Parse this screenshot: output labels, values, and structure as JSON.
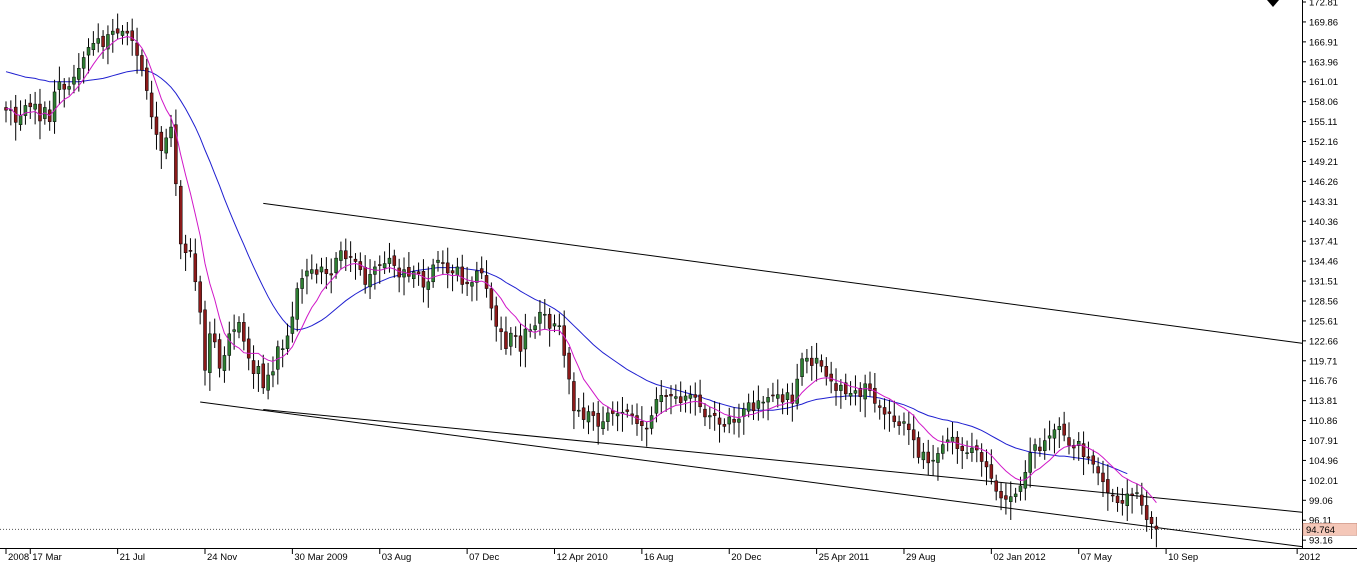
{
  "chart_data": {
    "type": "candlestick",
    "title": "",
    "xlabel": "",
    "ylabel": "",
    "grid": false,
    "legend": "none",
    "ylim": [
      92.0,
      172.81
    ],
    "y_ticks": [
      {
        "value": 172.81,
        "label": "172.81"
      },
      {
        "value": 169.86,
        "label": "169.86"
      },
      {
        "value": 166.91,
        "label": "166.91"
      },
      {
        "value": 163.96,
        "label": "163.96"
      },
      {
        "value": 161.01,
        "label": "161.01"
      },
      {
        "value": 158.06,
        "label": "158.06"
      },
      {
        "value": 155.11,
        "label": "155.11"
      },
      {
        "value": 152.16,
        "label": "152.16"
      },
      {
        "value": 149.21,
        "label": "149.21"
      },
      {
        "value": 146.26,
        "label": "146.26"
      },
      {
        "value": 143.31,
        "label": "143.31"
      },
      {
        "value": 140.36,
        "label": "140.36"
      },
      {
        "value": 137.41,
        "label": "137.41"
      },
      {
        "value": 134.46,
        "label": "134.46"
      },
      {
        "value": 131.51,
        "label": "131.51"
      },
      {
        "value": 128.56,
        "label": "128.56"
      },
      {
        "value": 125.61,
        "label": "125.61"
      },
      {
        "value": 122.66,
        "label": "122.66"
      },
      {
        "value": 119.71,
        "label": "119.71"
      },
      {
        "value": 116.76,
        "label": "116.76"
      },
      {
        "value": 113.81,
        "label": "113.81"
      },
      {
        "value": 110.86,
        "label": "110.86"
      },
      {
        "value": 107.91,
        "label": "107.91"
      },
      {
        "value": 104.96,
        "label": "104.96"
      },
      {
        "value": 102.01,
        "label": "102.01"
      },
      {
        "value": 99.06,
        "label": "99.06"
      },
      {
        "value": 96.11,
        "label": "96.11"
      },
      {
        "value": 93.16,
        "label": "93.16"
      }
    ],
    "x_ticks": [
      {
        "label": "2008",
        "x": 0
      },
      {
        "label": "17 Mar",
        "x": 5
      },
      {
        "label": "21 Jul",
        "x": 23
      },
      {
        "label": "24 Nov",
        "x": 41
      },
      {
        "label": "30 Mar 2009",
        "x": 59
      },
      {
        "label": "03 Aug",
        "x": 77
      },
      {
        "label": "07 Dec",
        "x": 95
      },
      {
        "label": "12 Apr 2010",
        "x": 113
      },
      {
        "label": "16 Aug",
        "x": 131
      },
      {
        "label": "20 Dec",
        "x": 149
      },
      {
        "label": "25 Apr 2011",
        "x": 167
      },
      {
        "label": "29 Aug",
        "x": 185
      },
      {
        "label": "02 Jan 2012",
        "x": 203
      },
      {
        "label": "07 May",
        "x": 221
      },
      {
        "label": "10 Sep",
        "x": 239
      },
      {
        "label": "2012",
        "x": 266
      }
    ],
    "x_range": [
      0,
      267
    ],
    "last_price": {
      "value": 94.764,
      "label": "94.764",
      "color": "#f4c7b8"
    },
    "colors": {
      "up": "#2e7d32",
      "down": "#8b1a1a",
      "wick": "#000000",
      "ma_fast": "#d017c8",
      "ma_slow": "#1f1fd0",
      "channel": "#000000",
      "background": "#ffffff"
    },
    "closes": [
      156.8,
      156.9,
      155.0,
      156.0,
      157.5,
      157.3,
      157.7,
      155.2,
      157.2,
      155.1,
      159.5,
      161.0,
      159.9,
      160.3,
      161.7,
      163.0,
      164.6,
      166.1,
      166.7,
      167.4,
      166.2,
      168.0,
      168.5,
      168.2,
      168.5,
      168.2,
      167.1,
      164.9,
      162.7,
      159.7,
      155.8,
      153.2,
      150.8,
      152.7,
      154.3,
      145.9,
      137.0,
      135.7,
      135.9,
      131.4,
      126.9,
      118.3,
      123.7,
      122.5,
      118.6,
      120.5,
      123.7,
      124.3,
      125.4,
      122.6,
      120.1,
      117.8,
      118.9,
      115.7,
      117.6,
      118.1,
      121.8,
      121.5,
      123.4,
      126.2,
      130.4,
      131.9,
      133.0,
      133.2,
      132.5,
      133.6,
      132.6,
      132.4,
      134.9,
      136.0,
      134.8,
      135.1,
      134.4,
      133.2,
      131.0,
      132.5,
      133.6,
      133.8,
      134.1,
      134.9,
      133.8,
      132.1,
      133.2,
      132.2,
      132.9,
      132.6,
      130.6,
      131.4,
      133.9,
      134.6,
      134.2,
      132.7,
      132.7,
      133.6,
      131.0,
      131.1,
      131.3,
      133.0,
      132.7,
      130.4,
      127.5,
      124.8,
      124.0,
      121.5,
      123.8,
      123.4,
      121.1,
      124.4,
      124.3,
      124.9,
      126.9,
      126.6,
      124.5,
      125.2,
      124.9,
      120.5,
      117.0,
      112.3,
      112.4,
      111.0,
      112.2,
      111.6,
      110.0,
      110.7,
      112.0,
      111.9,
      111.9,
      112.1,
      112.2,
      111.6,
      110.4,
      110.1,
      109.7,
      111.6,
      114.0,
      114.6,
      114.4,
      114.5,
      114.4,
      113.5,
      114.5,
      114.7,
      114.3,
      112.9,
      111.4,
      111.6,
      111.6,
      110.3,
      110.0,
      111.4,
      110.6,
      111.1,
      112.6,
      113.5,
      112.3,
      113.8,
      113.6,
      114.3,
      114.5,
      114.7,
      113.6,
      115.0,
      113.4,
      117.0,
      120.0,
      120.1,
      119.0,
      120.1,
      118.9,
      117.4,
      116.7,
      115.3,
      116.1,
      114.8,
      114.9,
      115.3,
      114.4,
      116.3,
      115.3,
      113.4,
      112.8,
      111.8,
      111.9,
      110.7,
      110.1,
      110.7,
      109.5,
      108.0,
      105.4,
      106.2,
      104.6,
      105.0,
      106.0,
      107.3,
      108.0,
      108.4,
      106.7,
      106.4,
      106.1,
      106.8,
      106.5,
      104.8,
      104.0,
      102.3,
      100.4,
      99.4,
      99.2,
      99.6,
      100.0,
      101.2,
      103.2,
      106.1,
      107.3,
      106.4,
      107.9,
      108.6,
      109.5,
      110.0,
      108.7,
      107.2,
      106.8,
      107.8,
      105.5,
      105.3,
      104.4,
      103.1,
      101.8,
      100.2,
      99.7,
      98.7,
      98.6,
      100.0,
      99.8,
      100.2,
      98.3,
      96.2,
      95.6,
      94.8
    ],
    "ma_fast": [
      157.0,
      157.0,
      156.2,
      156.0,
      156.4,
      156.5,
      156.6,
      156.1,
      156.4,
      156.0,
      156.8,
      157.7,
      158.4,
      158.8,
      159.6,
      160.4,
      161.4,
      162.5,
      163.6,
      164.6,
      165.5,
      166.1,
      166.8,
      167.3,
      167.5,
      167.7,
      167.5,
      166.9,
      166.0,
      164.6,
      162.7,
      160.6,
      158.5,
      156.9,
      155.7,
      153.5,
      150.2,
      147.2,
      144.5,
      141.4,
      138.2,
      134.1,
      131.1,
      128.8,
      126.0,
      123.8,
      122.7,
      122.0,
      121.6,
      120.9,
      120.8,
      120.8,
      120.8,
      120.2,
      119.8,
      119.6,
      120.0,
      120.3,
      120.9,
      121.8,
      123.3,
      124.7,
      126.2,
      127.6,
      128.6,
      129.9,
      130.8,
      131.6,
      132.4,
      133.3,
      133.7,
      134.0,
      134.1,
      133.9,
      133.5,
      133.3,
      133.1,
      133.1,
      133.3,
      133.5,
      133.3,
      132.9,
      132.8,
      132.6,
      132.6,
      132.5,
      132.1,
      131.8,
      132.1,
      132.3,
      132.5,
      132.5,
      132.3,
      132.4,
      132.0,
      131.7,
      131.5,
      131.4,
      131.5,
      131.2,
      130.6,
      129.8,
      128.9,
      127.7,
      126.9,
      126.2,
      125.2,
      124.7,
      124.1,
      123.9,
      124.2,
      124.4,
      124.2,
      124.2,
      124.2,
      123.3,
      122.1,
      120.3,
      118.7,
      117.0,
      116.0,
      115.0,
      114.0,
      113.3,
      112.9,
      112.4,
      112.1,
      111.9,
      111.7,
      111.5,
      111.2,
      110.9,
      110.7,
      110.8,
      111.4,
      112.0,
      112.4,
      112.8,
      113.1,
      113.2,
      113.4,
      113.6,
      113.7,
      113.6,
      113.3,
      112.9,
      112.6,
      112.2,
      111.8,
      111.6,
      111.4,
      111.3,
      111.5,
      111.7,
      111.8,
      112.1,
      112.3,
      112.5,
      112.8,
      113.1,
      113.2,
      113.5,
      113.5,
      114.1,
      115.0,
      115.7,
      116.3,
      116.9,
      117.1,
      117.2,
      117.1,
      116.8,
      116.6,
      116.3,
      115.9,
      115.8,
      115.5,
      115.6,
      115.5,
      115.2,
      114.8,
      114.4,
      114.1,
      113.6,
      113.1,
      112.7,
      112.2,
      111.6,
      110.6,
      109.9,
      109.1,
      108.4,
      107.9,
      107.7,
      107.6,
      107.7,
      107.5,
      107.3,
      107.1,
      107.0,
      106.9,
      106.6,
      106.3,
      105.7,
      104.9,
      104.1,
      103.4,
      102.8,
      102.3,
      102.0,
      102.1,
      102.7,
      103.4,
      103.8,
      104.4,
      105.0,
      105.7,
      106.4,
      106.9,
      107.1,
      107.1,
      107.3,
      107.1,
      106.8,
      106.4,
      106.0,
      105.4,
      104.7,
      104.0,
      103.3,
      102.6,
      102.2,
      101.8,
      101.5,
      101.1,
      100.4,
      99.6,
      98.7
    ],
    "ma_slow": [
      162.5,
      162.3,
      162.1,
      161.9,
      161.7,
      161.6,
      161.5,
      161.3,
      161.2,
      161.0,
      161.0,
      161.0,
      161.0,
      161.0,
      161.0,
      161.0,
      161.1,
      161.2,
      161.3,
      161.4,
      161.5,
      161.7,
      161.9,
      162.1,
      162.3,
      162.5,
      162.6,
      162.7,
      162.7,
      162.6,
      162.4,
      162.0,
      161.5,
      160.9,
      160.2,
      159.3,
      158.2,
      157.0,
      155.7,
      154.3,
      152.7,
      150.9,
      149.2,
      147.4,
      145.6,
      143.7,
      141.9,
      140.2,
      138.5,
      136.9,
      135.2,
      133.6,
      132.1,
      130.6,
      129.2,
      127.9,
      126.8,
      125.8,
      125.0,
      124.5,
      124.3,
      124.4,
      124.6,
      124.9,
      125.3,
      125.7,
      126.2,
      126.8,
      127.4,
      128.0,
      128.6,
      129.1,
      129.6,
      130.0,
      130.4,
      130.8,
      131.1,
      131.4,
      131.7,
      132.0,
      132.2,
      132.4,
      132.6,
      132.8,
      133.0,
      133.1,
      133.2,
      133.3,
      133.4,
      133.5,
      133.5,
      133.5,
      133.5,
      133.5,
      133.4,
      133.3,
      133.2,
      133.1,
      133.0,
      132.8,
      132.5,
      132.2,
      131.8,
      131.3,
      130.9,
      130.5,
      130.0,
      129.6,
      129.2,
      128.8,
      128.5,
      128.2,
      127.8,
      127.4,
      126.9,
      126.3,
      125.6,
      124.9,
      124.2,
      123.5,
      122.8,
      122.1,
      121.5,
      120.9,
      120.4,
      119.9,
      119.4,
      118.9,
      118.4,
      118.0,
      117.6,
      117.2,
      116.8,
      116.5,
      116.2,
      116.0,
      115.8,
      115.6,
      115.4,
      115.2,
      115.0,
      114.8,
      114.6,
      114.4,
      114.1,
      113.9,
      113.6,
      113.4,
      113.2,
      113.0,
      112.8,
      112.7,
      112.6,
      112.5,
      112.4,
      112.4,
      112.4,
      112.4,
      112.4,
      112.5,
      112.6,
      112.7,
      112.9,
      113.1,
      113.3,
      113.6,
      113.8,
      114.0,
      114.1,
      114.2,
      114.3,
      114.4,
      114.4,
      114.5,
      114.5,
      114.5,
      114.5,
      114.5,
      114.4,
      114.3,
      114.2,
      114.0,
      113.8,
      113.6,
      113.4,
      113.2,
      112.9,
      112.6,
      112.2,
      111.9,
      111.6,
      111.4,
      111.2,
      111.0,
      110.9,
      110.7,
      110.6,
      110.4,
      110.2,
      110.0,
      109.7,
      109.4,
      109.0,
      108.6,
      108.2,
      107.8,
      107.4,
      107.1,
      106.8,
      106.6,
      106.4,
      106.2,
      106.1,
      106.0,
      105.9,
      105.8,
      105.7,
      105.6,
      105.6,
      105.5,
      105.4,
      105.3,
      105.2,
      105.1,
      104.9,
      104.7,
      104.4,
      104.2,
      103.9,
      103.6,
      103.3,
      103.0
    ],
    "channel_lines": [
      {
        "name": "upper",
        "x1": 53,
        "y1": 143.0,
        "x2": 267,
        "y2": 122.3
      },
      {
        "name": "lower",
        "x1": 40,
        "y1": 113.6,
        "x2": 267,
        "y2": 92.2
      },
      {
        "name": "inner",
        "x1": 53,
        "y1": 112.5,
        "x2": 267,
        "y2": 97.3
      }
    ]
  }
}
